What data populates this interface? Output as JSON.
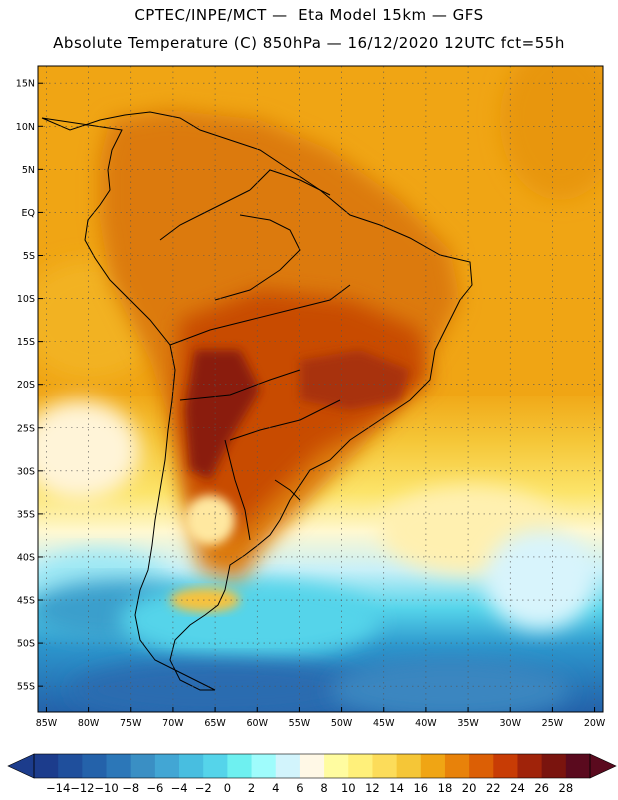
{
  "title_line1": "CPTEC/INPE/MCT —  Eta Model 15km — GFS",
  "title_line2": "Absolute Temperature (C) 850hPa — 16/12/2020 12UTC fct=55h",
  "map": {
    "lon_range": [
      -86,
      -19
    ],
    "lat_range": [
      -58,
      17
    ],
    "grid": "dotted",
    "lat_ticks": [
      {
        "v": 15,
        "label": "15N"
      },
      {
        "v": 10,
        "label": "10N"
      },
      {
        "v": 5,
        "label": "5N"
      },
      {
        "v": 0,
        "label": "EQ"
      },
      {
        "v": -5,
        "label": "5S"
      },
      {
        "v": -10,
        "label": "10S"
      },
      {
        "v": -15,
        "label": "15S"
      },
      {
        "v": -20,
        "label": "20S"
      },
      {
        "v": -25,
        "label": "25S"
      },
      {
        "v": -30,
        "label": "30S"
      },
      {
        "v": -35,
        "label": "35S"
      },
      {
        "v": -40,
        "label": "40S"
      },
      {
        "v": -45,
        "label": "45S"
      },
      {
        "v": -50,
        "label": "50S"
      },
      {
        "v": -55,
        "label": "55S"
      }
    ],
    "lon_ticks": [
      {
        "v": -85,
        "label": "85W"
      },
      {
        "v": -80,
        "label": "80W"
      },
      {
        "v": -75,
        "label": "75W"
      },
      {
        "v": -70,
        "label": "70W"
      },
      {
        "v": -65,
        "label": "65W"
      },
      {
        "v": -60,
        "label": "60W"
      },
      {
        "v": -55,
        "label": "55W"
      },
      {
        "v": -50,
        "label": "50W"
      },
      {
        "v": -45,
        "label": "45W"
      },
      {
        "v": -40,
        "label": "40W"
      },
      {
        "v": -35,
        "label": "35W"
      },
      {
        "v": -30,
        "label": "30W"
      },
      {
        "v": -25,
        "label": "25W"
      },
      {
        "v": -20,
        "label": "20W"
      }
    ]
  },
  "colorbar": {
    "unit": "C",
    "labels": [
      "-14",
      "-12",
      "-10",
      "-8",
      "-6",
      "-4",
      "-2",
      "0",
      "2",
      "4",
      "6",
      "8",
      "10",
      "12",
      "14",
      "16",
      "18",
      "20",
      "22",
      "24",
      "26",
      "28"
    ],
    "colors": [
      "#1c3c8c",
      "#1f4f9c",
      "#2462aa",
      "#2c77b8",
      "#3a8fc4",
      "#42a6d4",
      "#48bee0",
      "#55d4ea",
      "#6ef0f0",
      "#9ffcfc",
      "#d2f4fc",
      "#fff8e6",
      "#fffca0",
      "#fff07a",
      "#fcdc5a",
      "#f5c637",
      "#f0a514",
      "#e8820a",
      "#dc5f05",
      "#c83c05",
      "#a0230a",
      "#7a140e",
      "#5a0a1e"
    ]
  }
}
